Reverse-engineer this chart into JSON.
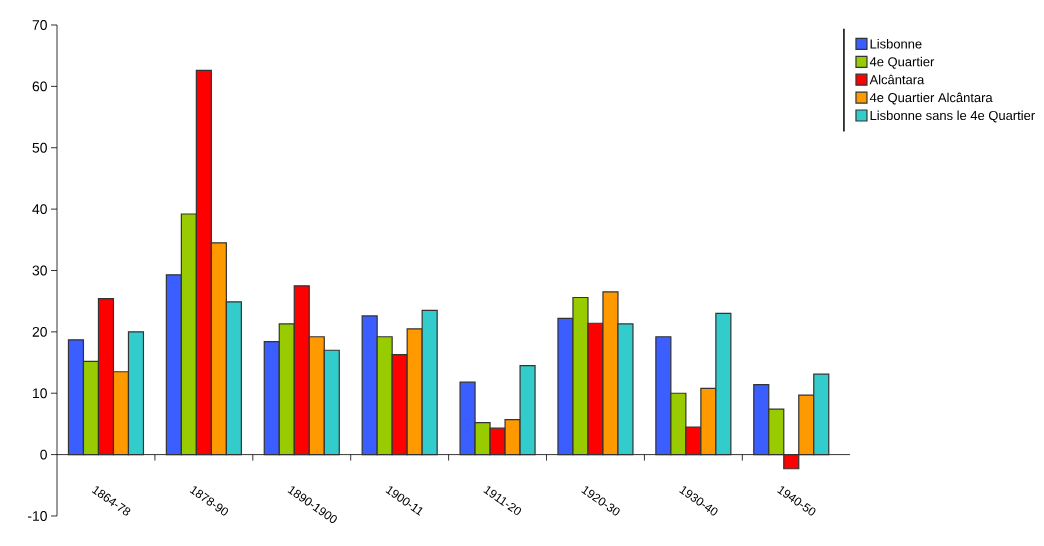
{
  "chart_data": {
    "type": "bar",
    "categories": [
      "1864-78",
      "1878-90",
      "1890-1900",
      "1900-11",
      "1911-20",
      "1920-30",
      "1930-40",
      "1940-50"
    ],
    "series": [
      {
        "name": "Lisbonne",
        "color": "#3a5eff",
        "values": [
          18.7,
          29.3,
          18.4,
          22.6,
          11.8,
          22.2,
          19.2,
          11.4
        ]
      },
      {
        "name": "4e Quartier",
        "color": "#99cc00",
        "values": [
          15.2,
          39.2,
          21.3,
          19.2,
          5.2,
          25.6,
          10.0,
          7.4
        ]
      },
      {
        "name": "Alcântara",
        "color": "#ff0000",
        "values": [
          25.4,
          62.6,
          27.5,
          16.3,
          4.3,
          21.4,
          4.5,
          -2.3
        ]
      },
      {
        "name": "4e Quartier Alcântara",
        "color": "#ff9900",
        "values": [
          13.5,
          34.5,
          19.2,
          20.5,
          5.7,
          26.5,
          10.8,
          9.7
        ]
      },
      {
        "name": "Lisbonne sans le 4e Quartier",
        "color": "#33cccc",
        "values": [
          20.0,
          24.9,
          17.0,
          23.5,
          14.5,
          21.3,
          23.0,
          13.1
        ]
      }
    ],
    "ylim": [
      -10,
      70
    ],
    "yticks": [
      -10,
      0,
      10,
      20,
      30,
      40,
      50,
      60,
      70
    ],
    "legend": "top right"
  }
}
